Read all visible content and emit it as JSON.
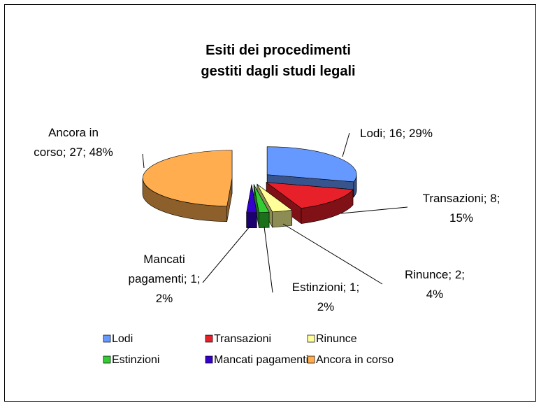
{
  "chart_data": {
    "type": "pie3d",
    "title": "Esiti dei procedimenti\ngestiti dagli studi legali",
    "categories": [
      "Lodi",
      "Transazioni",
      "Rinunce",
      "Estinzioni",
      "Mancati pagamenti",
      "Ancora in corso"
    ],
    "values": [
      16,
      8,
      2,
      1,
      1,
      27
    ],
    "value_labels": [
      "Lodi; 16; 29%",
      "Transazioni; 8;\n15%",
      "Rinunce; 2;\n4%",
      "Estinzioni; 1;\n2%",
      "Mancati\npagamenti; 1;\n2%",
      "Ancora in\ncorso; 27; 48%"
    ],
    "colors": [
      "#6699ff",
      "#e8202a",
      "#ffff99",
      "#33cc33",
      "#3300cc",
      "#ffad4f"
    ],
    "legend": "bottom"
  }
}
